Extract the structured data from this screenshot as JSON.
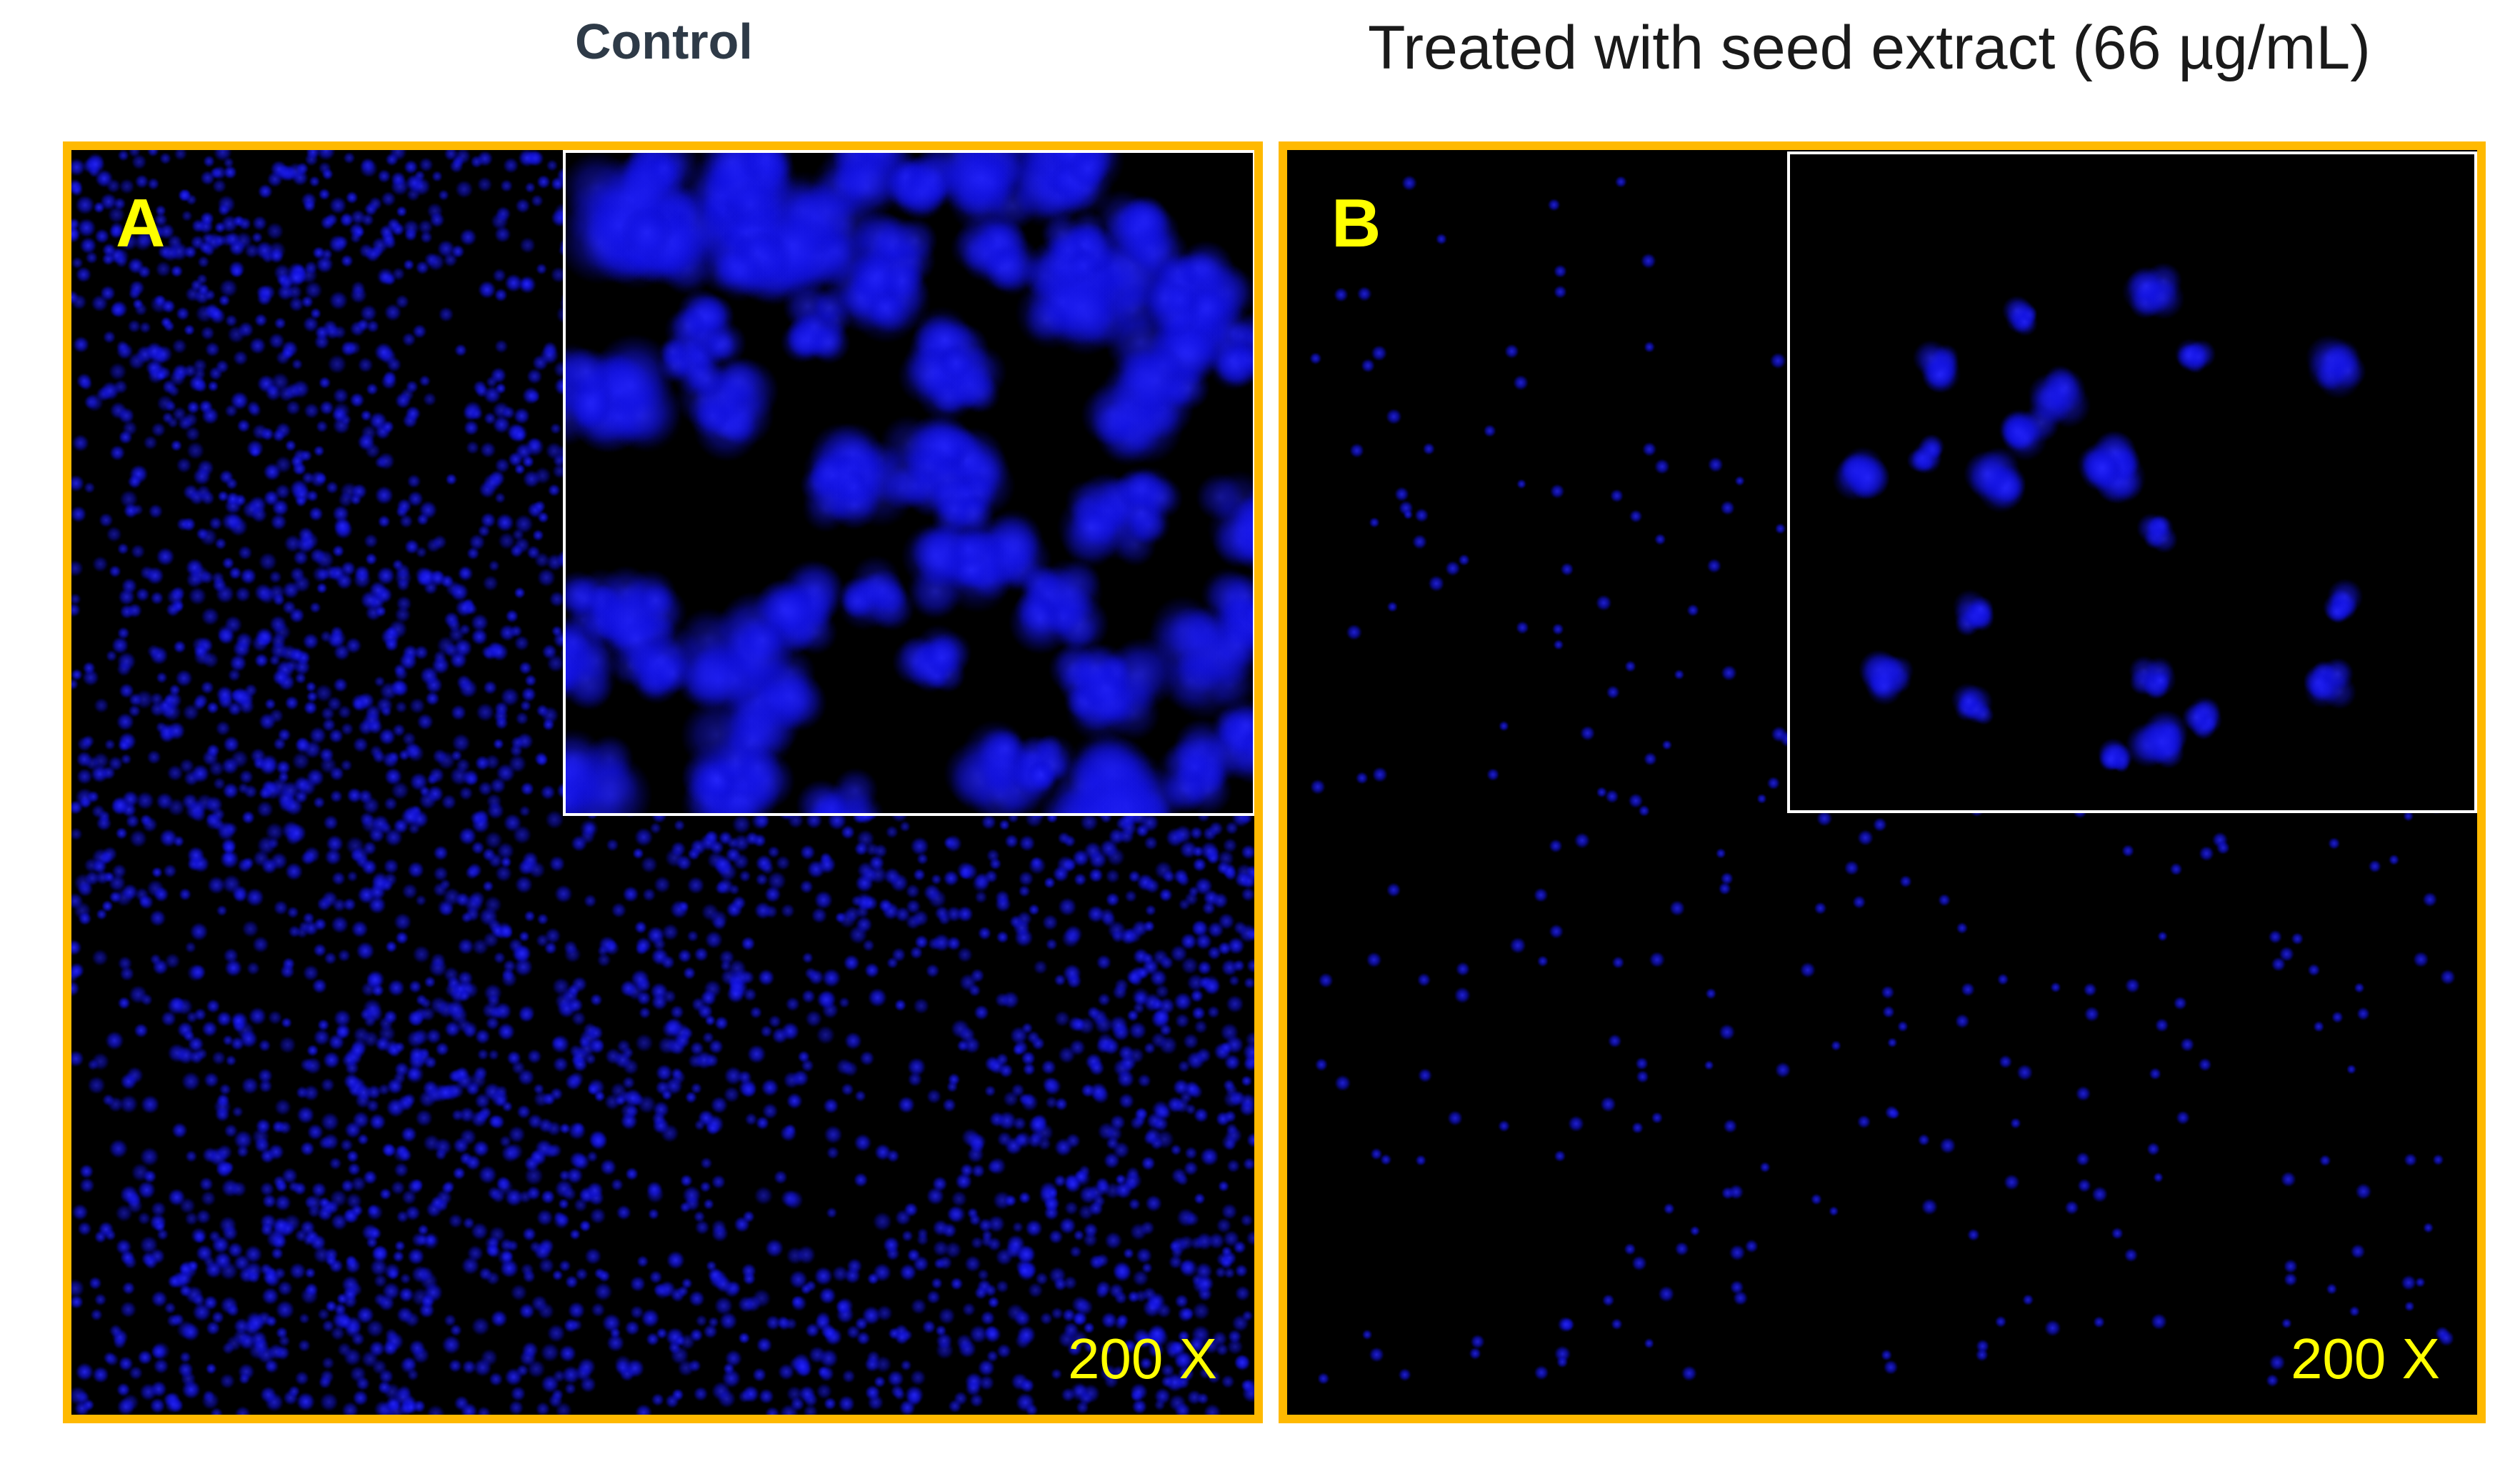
{
  "panels": {
    "left": {
      "title": "Control",
      "letter": "A",
      "magnification": "200 X"
    },
    "right": {
      "title": "Treated with seed extract (66 µg/mL)",
      "letter": "B",
      "magnification": "200 X"
    }
  },
  "colors": {
    "frame": "#ffb900",
    "label": "#ffff00",
    "nuclei": "#1a1aff",
    "background": "#000000",
    "inset_border": "#ffffff"
  }
}
